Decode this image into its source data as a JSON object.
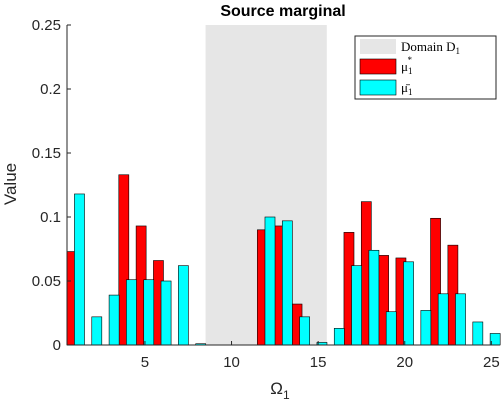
{
  "chart_data": {
    "type": "bar",
    "title": "Source marginal",
    "xlabel": "Ω",
    "xlabel_subscript": "1",
    "ylabel": "Value",
    "xlim": [
      0.5,
      25.5
    ],
    "ylim": [
      0,
      0.25
    ],
    "xticks": [
      5,
      10,
      15,
      20,
      25
    ],
    "yticks": [
      0,
      0.05,
      0.1,
      0.15,
      0.2,
      0.25
    ],
    "ytick_labels": [
      "0",
      "0.05",
      "0.1",
      "0.15",
      "0.2",
      "0.25"
    ],
    "grid": false,
    "legend_position": "top-right",
    "shaded_region": {
      "name": "Domain D",
      "name_subscript": "1",
      "x_range": [
        8.5,
        15.5
      ],
      "color": "#e6e6e6"
    },
    "x": [
      1,
      2,
      3,
      4,
      5,
      6,
      7,
      8,
      9,
      10,
      11,
      12,
      13,
      14,
      15,
      16,
      17,
      18,
      19,
      20,
      21,
      22,
      23,
      24,
      25
    ],
    "series": [
      {
        "name": "μ",
        "name_superscript": "*",
        "name_subscript": "1",
        "color": "#ff0000",
        "values": [
          0.073,
          0,
          0,
          0.133,
          0.093,
          0.066,
          0,
          0,
          0,
          0,
          0,
          0.09,
          0.093,
          0.032,
          0,
          0,
          0.088,
          0.112,
          0.07,
          0.068,
          0,
          0.099,
          0.078,
          0,
          0
        ]
      },
      {
        "name": "μ̄",
        "name_subscript": "1",
        "color": "#00ffff",
        "values": [
          0.118,
          0.022,
          0.039,
          0.051,
          0.051,
          0.05,
          0.062,
          0.001,
          0,
          0,
          0,
          0.1,
          0.097,
          0.022,
          0.002,
          0.013,
          0.062,
          0.074,
          0.026,
          0.065,
          0.027,
          0.04,
          0.04,
          0.018,
          0.009
        ]
      }
    ]
  }
}
